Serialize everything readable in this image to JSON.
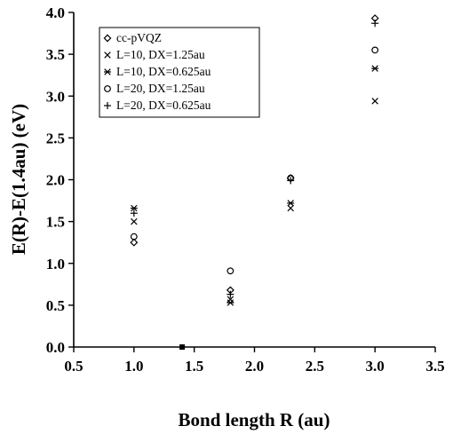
{
  "chart_data": {
    "type": "scatter",
    "xlabel": "Bond length R (au)",
    "ylabel": "E(R)-E(1.4au) (eV)",
    "xlim": [
      0.5,
      3.5
    ],
    "ylim": [
      0.0,
      4.0
    ],
    "xticks": [
      "0.5",
      "1.0",
      "1.5",
      "2.0",
      "2.5",
      "3.0",
      "3.5"
    ],
    "yticks": [
      "0.0",
      "0.5",
      "1.0",
      "1.5",
      "2.0",
      "2.5",
      "3.0",
      "3.5",
      "4.0"
    ],
    "grid": false,
    "legend_position": "top-left",
    "series": [
      {
        "name": "cc-pVQZ",
        "marker": "diamond",
        "x": [
          1.0,
          1.4,
          1.8,
          2.3,
          3.0
        ],
        "y": [
          1.25,
          0.0,
          0.68,
          2.02,
          3.93
        ]
      },
      {
        "name": "L=10, DX=1.25au",
        "marker": "x",
        "x": [
          1.0,
          1.4,
          1.8,
          2.3,
          3.0
        ],
        "y": [
          1.5,
          0.0,
          0.57,
          1.66,
          2.94
        ]
      },
      {
        "name": "L=10, DX=0.625au",
        "marker": "asterisk",
        "x": [
          1.0,
          1.4,
          1.8,
          2.3,
          3.0
        ],
        "y": [
          1.66,
          0.0,
          0.53,
          1.72,
          3.33
        ]
      },
      {
        "name": "L=20, DX=1.25au",
        "marker": "circle",
        "x": [
          1.0,
          1.4,
          1.8,
          2.3,
          3.0
        ],
        "y": [
          1.32,
          0.0,
          0.91,
          2.02,
          3.55
        ]
      },
      {
        "name": "L=20, DX=0.625au",
        "marker": "plus",
        "x": [
          1.0,
          1.4,
          1.8,
          2.3,
          3.0
        ],
        "y": [
          1.6,
          0.0,
          0.63,
          1.99,
          3.87
        ]
      }
    ]
  }
}
